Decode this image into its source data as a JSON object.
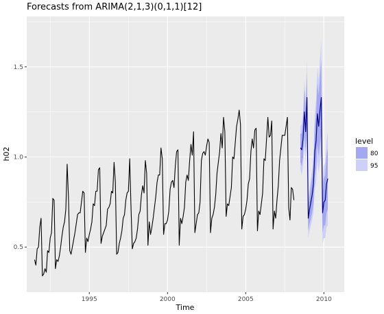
{
  "chart_data": {
    "type": "line",
    "title": "Forecasts from ARIMA(2,1,3)(0,1,1)[12]",
    "xlabel": "Time",
    "ylabel": "h02",
    "xlim": [
      1991.0,
      2011.3
    ],
    "ylim": [
      0.25,
      1.78
    ],
    "x_ticks": [
      1995,
      2000,
      2005,
      2010
    ],
    "x_tick_labels": [
      "1995",
      "2000",
      "2005",
      "2010"
    ],
    "y_ticks": [
      0.5,
      1.0,
      1.5
    ],
    "y_tick_labels": [
      "0.5",
      "1.0",
      "1.5"
    ],
    "grid": true,
    "legend": {
      "title": "level",
      "position": "right",
      "entries": [
        {
          "label": "80",
          "color": "#a3a8f0"
        },
        {
          "label": "95",
          "color": "#cdd0f8"
        }
      ]
    },
    "colors": {
      "panel": "#ebebeb",
      "grid": "#ffffff",
      "series_line": "#000000",
      "forecast_line": "#00008b",
      "band80": "#a3a8f0",
      "band95": "#cdd0f8"
    },
    "series": [
      {
        "x_start": 1991.5,
        "step": 0.0833333,
        "values": [
          0.43,
          0.4,
          0.49,
          0.5,
          0.61,
          0.66,
          0.34,
          0.35,
          0.38,
          0.36,
          0.48,
          0.47,
          0.55,
          0.58,
          0.77,
          0.76,
          0.38,
          0.43,
          0.42,
          0.45,
          0.5,
          0.56,
          0.61,
          0.64,
          0.71,
          0.96,
          0.78,
          0.48,
          0.46,
          0.5,
          0.54,
          0.58,
          0.63,
          0.68,
          0.69,
          0.69,
          0.75,
          0.81,
          0.8,
          0.47,
          0.55,
          0.53,
          0.57,
          0.6,
          0.64,
          0.74,
          0.73,
          0.81,
          0.81,
          0.93,
          0.94,
          0.52,
          0.56,
          0.58,
          0.6,
          0.62,
          0.71,
          0.72,
          0.74,
          0.81,
          0.8,
          0.97,
          0.86,
          0.46,
          0.47,
          0.52,
          0.55,
          0.59,
          0.66,
          0.68,
          0.76,
          0.8,
          0.81,
          0.99,
          0.72,
          0.49,
          0.52,
          0.53,
          0.55,
          0.6,
          0.68,
          0.7,
          0.79,
          0.84,
          0.8,
          0.98,
          0.91,
          0.51,
          0.64,
          0.57,
          0.61,
          0.66,
          0.72,
          0.78,
          0.86,
          0.9,
          0.9,
          1.05,
          0.99,
          0.57,
          0.63,
          0.63,
          0.65,
          0.7,
          0.82,
          0.86,
          0.87,
          0.83,
          0.95,
          1.03,
          1.04,
          0.51,
          0.66,
          0.63,
          0.67,
          0.72,
          0.86,
          0.9,
          0.87,
          0.98,
          1.07,
          1.01,
          1.14,
          0.58,
          0.63,
          0.68,
          0.69,
          0.75,
          0.98,
          1.02,
          1.03,
          1.01,
          1.06,
          1.1,
          1.08,
          0.58,
          0.66,
          0.68,
          0.72,
          0.79,
          0.91,
          0.97,
          1.03,
          1.13,
          1.05,
          1.22,
          1.14,
          0.67,
          0.74,
          0.73,
          0.78,
          0.83,
          1.0,
          0.99,
          1.08,
          1.17,
          1.21,
          1.26,
          1.18,
          0.6,
          0.67,
          0.68,
          0.71,
          0.76,
          0.85,
          0.88,
          1.03,
          1.1,
          1.05,
          1.15,
          1.16,
          0.59,
          0.7,
          0.68,
          0.74,
          0.8,
          0.99,
          0.98,
          1.1,
          1.22,
          1.11,
          1.12,
          1.2,
          0.6,
          0.7,
          0.66,
          0.76,
          0.84,
          0.98,
          1.05,
          1.12,
          1.12,
          1.12,
          1.17,
          1.22,
          0.72,
          0.65,
          0.83,
          0.82,
          0.76
        ]
      },
      {
        "name": "forecast",
        "x_start": 2008.5,
        "step": 0.0833333,
        "values": [
          1.05,
          1.04,
          1.1,
          1.25,
          1.14,
          1.33,
          0.66,
          0.71,
          0.75,
          0.79,
          0.85,
          1.03,
          1.09,
          1.24,
          1.17,
          1.26,
          1.33,
          0.69,
          0.75,
          0.76,
          0.85,
          0.88
        ],
        "band80_lower": [
          0.97,
          0.95,
          1.0,
          1.13,
          1.03,
          1.19,
          0.59,
          0.63,
          0.66,
          0.69,
          0.74,
          0.89,
          0.94,
          1.07,
          1.0,
          1.07,
          1.12,
          0.58,
          0.62,
          0.62,
          0.69,
          0.71
        ],
        "band80_upper": [
          1.13,
          1.13,
          1.2,
          1.37,
          1.25,
          1.47,
          0.73,
          0.79,
          0.84,
          0.89,
          0.96,
          1.17,
          1.24,
          1.41,
          1.34,
          1.45,
          1.54,
          0.8,
          0.88,
          0.9,
          1.01,
          1.05
        ],
        "band95_lower": [
          0.93,
          0.9,
          0.95,
          1.07,
          0.97,
          1.12,
          0.55,
          0.59,
          0.62,
          0.65,
          0.69,
          0.82,
          0.86,
          0.98,
          0.91,
          0.97,
          1.01,
          0.52,
          0.55,
          0.55,
          0.61,
          0.62
        ],
        "band95_upper": [
          1.17,
          1.18,
          1.25,
          1.43,
          1.31,
          1.54,
          0.77,
          0.83,
          0.88,
          0.93,
          1.01,
          1.24,
          1.32,
          1.5,
          1.43,
          1.55,
          1.65,
          0.86,
          0.95,
          0.97,
          1.09,
          1.14
        ]
      }
    ]
  }
}
